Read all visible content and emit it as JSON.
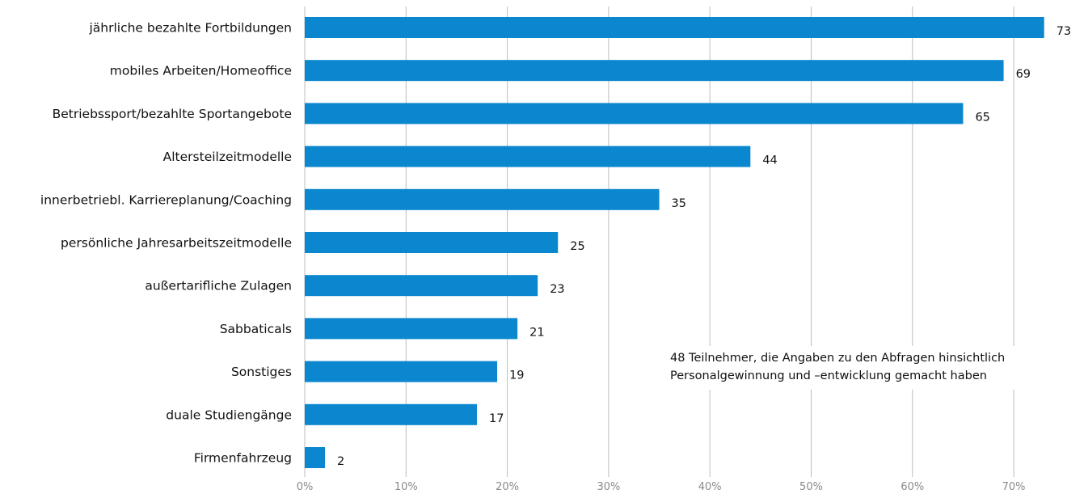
{
  "chart_data": {
    "type": "bar",
    "orientation": "horizontal",
    "categories": [
      "jährliche bezahlte Fortbildungen",
      "mobiles Arbeiten/Homeoffice",
      "Betriebssport/bezahlte Sportangebote",
      "Altersteilzeitmodelle",
      "innerbetriebl. Karriereplanung/Coaching",
      "persönliche Jahresarbeitszeitmodelle",
      "außertarifliche Zulagen",
      "Sabbaticals",
      "Sonstiges",
      "duale Studiengänge",
      "Firmenfahrzeug"
    ],
    "values": [
      73,
      69,
      65,
      44,
      35,
      25,
      23,
      21,
      19,
      17,
      2
    ],
    "value_labels": [
      "73",
      "69",
      "65",
      "44",
      "35",
      "25",
      "23",
      "21",
      "19",
      "17",
      "2"
    ],
    "xlim": [
      0,
      75
    ],
    "xticks": [
      0,
      10,
      20,
      30,
      40,
      50,
      60,
      70
    ],
    "xtick_labels": [
      "0%",
      "10%",
      "20%",
      "30%",
      "40%",
      "50%",
      "60%",
      "70%"
    ],
    "grid": "vertical",
    "bar_color": "#0a87cf",
    "grid_color": "#bdbdbd",
    "annotation": [
      "48 Teilnehmer, die Angaben zu den Abfragen hinsichtlich",
      "Personalgewinnung und –entwicklung gemacht haben"
    ]
  }
}
